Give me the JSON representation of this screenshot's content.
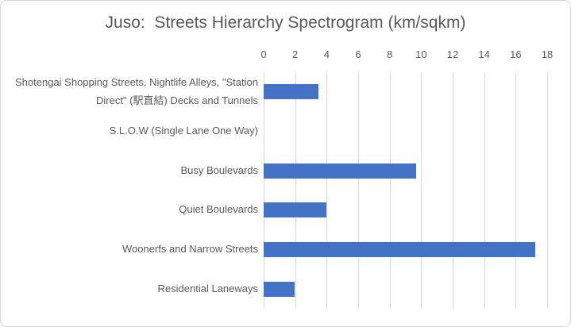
{
  "chart_data": {
    "type": "bar",
    "orientation": "horizontal",
    "title": "Juso:  Streets Hierarchy Spectrogram (km/sqkm)",
    "categories": [
      "Shotengai Shopping Streets, Nightlife Alleys, \"Station Direct\" (駅直結) Decks and Tunnels",
      "S.L.O.W (Single Lane One Way)",
      "Busy Boulevards",
      "Quiet Boulevards",
      "Woonerfs and Narrow Streets",
      "Residential Laneways"
    ],
    "values": [
      3.5,
      0,
      9.7,
      4,
      17.25,
      1.95
    ],
    "xlabel": "",
    "ylabel": "",
    "xlim": [
      0,
      18
    ],
    "x_ticks": [
      0,
      2,
      4,
      6,
      8,
      10,
      12,
      14,
      16,
      18
    ],
    "grid": "vertical",
    "legend_position": "none",
    "colors": {
      "bar": "#4472C4",
      "gridline": "#D9D9D9",
      "text": "#595959",
      "border": "#D6D6D6",
      "background": "#FFFFFF"
    }
  }
}
